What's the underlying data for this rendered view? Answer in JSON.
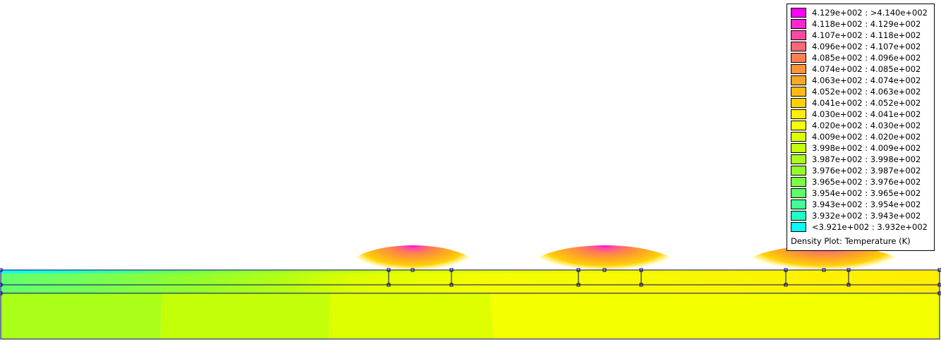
{
  "chart_data": {
    "type": "heatmap",
    "legend_title": "Density Plot: Temperature (K)",
    "legend_placement": "top-right",
    "unit": "K",
    "levels": [
      {
        "label": "4.129e+002 : >4.140e+002",
        "color": "#ff00ff"
      },
      {
        "label": "4.118e+002 : 4.129e+002",
        "color": "#ff27cf"
      },
      {
        "label": "4.107e+002 : 4.118e+002",
        "color": "#ff4aa3"
      },
      {
        "label": "4.096e+002 : 4.107e+002",
        "color": "#ff6678"
      },
      {
        "label": "4.085e+002 : 4.096e+002",
        "color": "#ff7e54"
      },
      {
        "label": "4.074e+002 : 4.085e+002",
        "color": "#ff9338"
      },
      {
        "label": "4.063e+002 : 4.074e+002",
        "color": "#ffa723"
      },
      {
        "label": "4.052e+002 : 4.063e+002",
        "color": "#ffba13"
      },
      {
        "label": "4.041e+002 : 4.052e+002",
        "color": "#ffd008"
      },
      {
        "label": "4.030e+002 : 4.041e+002",
        "color": "#ffee00"
      },
      {
        "label": "4.020e+002 : 4.030e+002",
        "color": "#f4ff00"
      },
      {
        "label": "4.009e+002 : 4.020e+002",
        "color": "#ddff00"
      },
      {
        "label": "3.998e+002 : 4.009e+002",
        "color": "#c4ff0a"
      },
      {
        "label": "3.987e+002 : 3.998e+002",
        "color": "#aaff19"
      },
      {
        "label": "3.976e+002 : 3.987e+002",
        "color": "#92ff2c"
      },
      {
        "label": "3.965e+002 : 3.976e+002",
        "color": "#79ff44"
      },
      {
        "label": "3.954e+002 : 3.965e+002",
        "color": "#5eff66"
      },
      {
        "label": "3.943e+002 : 3.954e+002",
        "color": "#40ff94"
      },
      {
        "label": "3.932e+002 : 3.943e+002",
        "color": "#20ffc6"
      },
      {
        "label": "<3.921e+002 : 3.932e+002",
        "color": "#00ffff"
      }
    ],
    "geometry_color": "#00007f"
  }
}
